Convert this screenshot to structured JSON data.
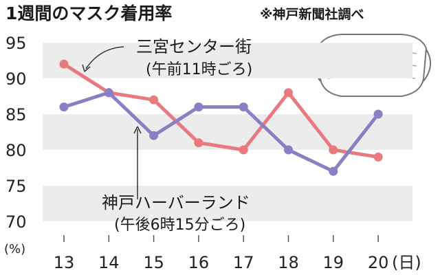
{
  "chart_data": {
    "type": "line",
    "title": "1週間のマスク着用率",
    "source": "※神戸新聞社調べ",
    "x": [
      "13",
      "14",
      "15",
      "16",
      "17",
      "18",
      "19",
      "20"
    ],
    "xunit": "(日)",
    "yunit": "(%)",
    "ylim": [
      70,
      95
    ],
    "yticks": [
      "95",
      "90",
      "85",
      "80",
      "75",
      "70"
    ],
    "grid": "alternating horizontal bands",
    "series": [
      {
        "name": "三宮センター街",
        "note": "(午前11時ごろ)",
        "color": "#e87a7f",
        "values": [
          92,
          88,
          87,
          81,
          80,
          88,
          80,
          79
        ]
      },
      {
        "name": "神戸ハーバーランド",
        "note": "(午後6時15分ごろ)",
        "color": "#8b7fc4",
        "values": [
          86,
          88,
          82,
          86,
          86,
          80,
          77,
          85
        ]
      }
    ]
  },
  "mask_icon": "face-mask-icon"
}
